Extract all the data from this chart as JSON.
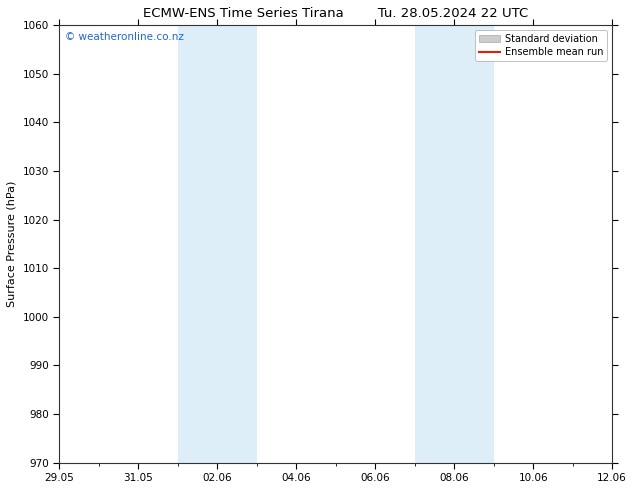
{
  "title_left": "ECMW-ENS Time Series Tirana",
  "title_right": "Tu. 28.05.2024 22 UTC",
  "ylabel": "Surface Pressure (hPa)",
  "ylim": [
    970,
    1060
  ],
  "yticks": [
    970,
    980,
    990,
    1000,
    1010,
    1020,
    1030,
    1040,
    1050,
    1060
  ],
  "xtick_labels": [
    "29.05",
    "31.05",
    "02.06",
    "04.06",
    "06.06",
    "08.06",
    "10.06",
    "12.06"
  ],
  "xtick_positions_days": [
    0,
    2,
    4,
    6,
    8,
    10,
    12,
    14
  ],
  "xlim": [
    0,
    14
  ],
  "shaded_regions": [
    {
      "start_day": 3.0,
      "end_day": 5.0,
      "color": "#ddeef8"
    },
    {
      "start_day": 9.0,
      "end_day": 11.0,
      "color": "#ddeef8"
    }
  ],
  "watermark_text": "© weatheronline.co.nz",
  "watermark_color": "#2266cc",
  "watermark_fontsize": 7.5,
  "legend_std_label": "Standard deviation",
  "legend_mean_label": "Ensemble mean run",
  "legend_std_color": "#cccccc",
  "legend_mean_color": "#dd2200",
  "background_color": "#ffffff",
  "plot_bg_color": "#ffffff",
  "border_color": "#333333",
  "title_fontsize": 9.5,
  "axis_label_fontsize": 8,
  "tick_fontsize": 7.5,
  "fig_width": 6.34,
  "fig_height": 4.9,
  "dpi": 100
}
